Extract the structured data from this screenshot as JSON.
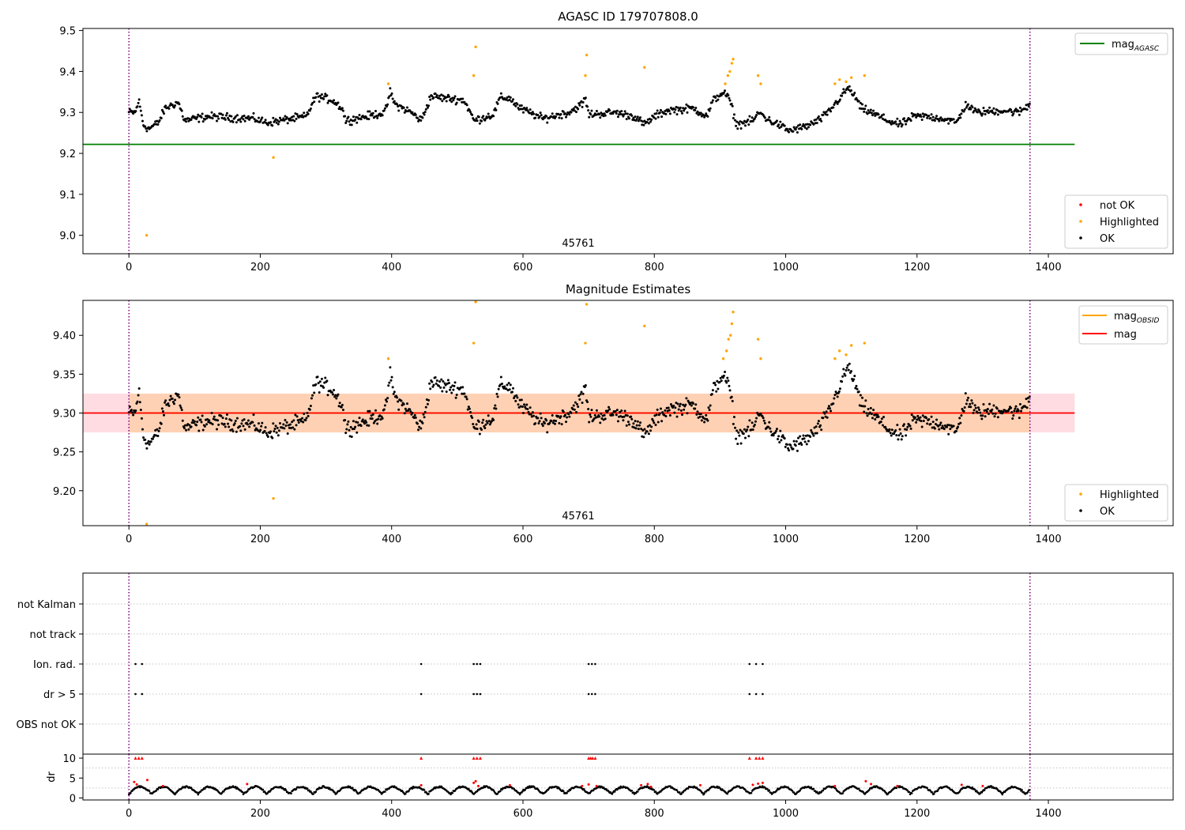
{
  "chart_data": [
    {
      "panel": "agasc",
      "type": "scatter",
      "title": "AGASC ID 179707808.0",
      "annotation": "45761",
      "xlim": [
        -70,
        1590
      ],
      "ylim": [
        8.955,
        9.505
      ],
      "xticks": [
        0,
        200,
        400,
        600,
        800,
        1000,
        1200,
        1400
      ],
      "yticks": [
        9.0,
        9.1,
        9.2,
        9.3,
        9.4,
        9.5
      ],
      "ytick_labels": [
        "9.0",
        "9.1",
        "9.2",
        "9.3",
        "9.4",
        "9.5"
      ],
      "vertical_lines_x": [
        0,
        1372
      ],
      "mag_agasc": 9.222,
      "mag_agasc_x": [
        -70,
        1440
      ],
      "legend_lines": [
        {
          "label": "mag",
          "sub": "AGASC",
          "color": "#008000"
        }
      ],
      "legend_points": [
        {
          "label": "not OK",
          "color": "#ff0000"
        },
        {
          "label": "Highlighted",
          "color": "#ffa500"
        },
        {
          "label": "OK",
          "color": "#000000"
        }
      ],
      "highlighted_points": [
        [
          27,
          9.0
        ],
        [
          220,
          9.19
        ],
        [
          395,
          9.37
        ],
        [
          525,
          9.39
        ],
        [
          528,
          9.46
        ],
        [
          695,
          9.39
        ],
        [
          697,
          9.44
        ],
        [
          785,
          9.41
        ],
        [
          908,
          9.37
        ],
        [
          912,
          9.39
        ],
        [
          915,
          9.4
        ],
        [
          918,
          9.42
        ],
        [
          920,
          9.43
        ],
        [
          958,
          9.39
        ],
        [
          962,
          9.37
        ],
        [
          1075,
          9.37
        ],
        [
          1082,
          9.38
        ],
        [
          1092,
          9.375
        ],
        [
          1100,
          9.385
        ],
        [
          1120,
          9.39
        ]
      ]
    },
    {
      "panel": "magnitude",
      "type": "scatter",
      "title": "Magnitude Estimates",
      "annotation": "45761",
      "xlim": [
        -70,
        1590
      ],
      "ylim": [
        9.155,
        9.445
      ],
      "xticks": [
        0,
        200,
        400,
        600,
        800,
        1000,
        1200,
        1400
      ],
      "yticks": [
        9.2,
        9.25,
        9.3,
        9.35,
        9.4
      ],
      "ytick_labels": [
        "9.20",
        "9.25",
        "9.30",
        "9.35",
        "9.40"
      ],
      "vertical_lines_x": [
        0,
        1372
      ],
      "mag": 9.3,
      "mag_band": [
        9.275,
        9.325
      ],
      "mag_obsid": 9.3,
      "band_x": [
        -70,
        1440
      ],
      "legend_lines": [
        {
          "label": "mag",
          "sub": "OBSID",
          "color": "#ffa500"
        },
        {
          "label": "mag",
          "sub": "",
          "color": "#ff0000"
        }
      ],
      "legend_points": [
        {
          "label": "Highlighted",
          "color": "#ffa500"
        },
        {
          "label": "OK",
          "color": "#000000"
        }
      ],
      "highlighted_points": [
        [
          27,
          9.157
        ],
        [
          220,
          9.19
        ],
        [
          395,
          9.37
        ],
        [
          525,
          9.39
        ],
        [
          528,
          9.443
        ],
        [
          695,
          9.39
        ],
        [
          697,
          9.44
        ],
        [
          785,
          9.412
        ],
        [
          905,
          9.37
        ],
        [
          910,
          9.38
        ],
        [
          913,
          9.395
        ],
        [
          916,
          9.4
        ],
        [
          918,
          9.415
        ],
        [
          920,
          9.43
        ],
        [
          958,
          9.395
        ],
        [
          962,
          9.37
        ],
        [
          1075,
          9.37
        ],
        [
          1082,
          9.38
        ],
        [
          1092,
          9.375
        ],
        [
          1100,
          9.387
        ],
        [
          1120,
          9.39
        ]
      ]
    },
    {
      "panel": "flags",
      "type": "scatter",
      "xlim": [
        -70,
        1590
      ],
      "categories": [
        "not Kalman",
        "not track",
        "Ion. rad.",
        "dr > 5",
        "OBS not OK"
      ],
      "vertical_lines_x": [
        0,
        1372
      ],
      "flag_x": [
        10,
        20,
        445,
        525,
        530,
        535,
        700,
        705,
        710,
        945,
        955,
        965
      ],
      "flagged_categories": [
        "Ion. rad.",
        "dr > 5"
      ]
    },
    {
      "panel": "dr",
      "type": "scatter",
      "ylabel": "dr",
      "xlim": [
        -70,
        1590
      ],
      "ylim": [
        -0.5,
        11
      ],
      "xticks": [
        0,
        200,
        400,
        600,
        800,
        1000,
        1200,
        1400
      ],
      "yticks": [
        0,
        5,
        10
      ],
      "ytick_labels": [
        "0",
        "5",
        "10"
      ],
      "vertical_lines_x": [
        0,
        1372
      ],
      "red_at_ten_x": [
        10,
        15,
        20,
        445,
        525,
        530,
        535,
        700,
        703,
        706,
        710,
        945,
        955,
        960,
        965
      ],
      "red_points": [
        [
          8,
          4.0
        ],
        [
          12,
          3.4
        ],
        [
          28,
          4.5
        ],
        [
          52,
          3.0
        ],
        [
          180,
          3.5
        ],
        [
          445,
          3.2
        ],
        [
          525,
          3.8
        ],
        [
          528,
          4.2
        ],
        [
          532,
          3.0
        ],
        [
          580,
          3.2
        ],
        [
          690,
          3.0
        ],
        [
          700,
          3.4
        ],
        [
          712,
          3.0
        ],
        [
          780,
          3.2
        ],
        [
          790,
          3.5
        ],
        [
          795,
          2.8
        ],
        [
          870,
          3.2
        ],
        [
          950,
          3.3
        ],
        [
          958,
          3.6
        ],
        [
          965,
          3.8
        ],
        [
          1075,
          3.0
        ],
        [
          1122,
          4.2
        ],
        [
          1130,
          3.5
        ],
        [
          1170,
          3.0
        ],
        [
          1268,
          3.3
        ],
        [
          1300,
          3.0
        ]
      ]
    }
  ]
}
